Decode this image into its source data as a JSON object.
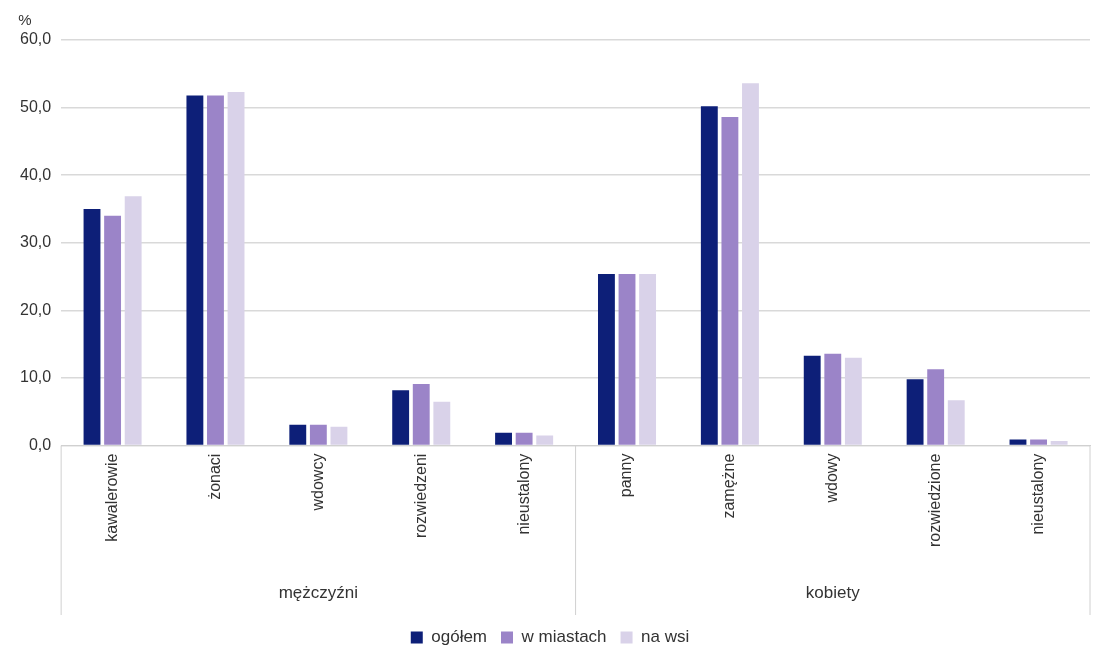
{
  "chart_data": {
    "type": "bar",
    "ylabel": "%",
    "categories": [
      "kawalerowie",
      "żonaci",
      "wdowcy",
      "rozwiedzeni",
      "nieustalony",
      "panny",
      "zamężne",
      "wdowy",
      "rozwiedzione",
      "nieustalony"
    ],
    "series": [
      {
        "name": "ogółem",
        "color": "#0d1f78",
        "values": [
          35.0,
          51.8,
          3.1,
          8.2,
          1.9,
          25.4,
          50.2,
          13.3,
          9.8,
          0.9
        ]
      },
      {
        "name": "w miastach",
        "color": "#9b84c8",
        "values": [
          34.0,
          51.8,
          3.1,
          9.1,
          1.9,
          25.4,
          48.6,
          13.6,
          11.3,
          0.9
        ]
      },
      {
        "name": "na wsi",
        "color": "#d9d2e9",
        "values": [
          36.9,
          52.3,
          2.8,
          6.5,
          1.5,
          25.4,
          53.6,
          13.0,
          6.7,
          0.7
        ]
      }
    ],
    "ylim": [
      0,
      60
    ],
    "yticks": [
      {
        "value": 0,
        "label": "0,0"
      },
      {
        "value": 10,
        "label": "10,0"
      },
      {
        "value": 20,
        "label": "20,0"
      },
      {
        "value": 30,
        "label": "30,0"
      },
      {
        "value": 40,
        "label": "40,0"
      },
      {
        "value": 50,
        "label": "50,0"
      },
      {
        "value": 60,
        "label": "60,0"
      }
    ],
    "annotations": [
      "mężczyźni",
      "kobiety"
    ],
    "grid": "y",
    "legend": "bottom"
  }
}
